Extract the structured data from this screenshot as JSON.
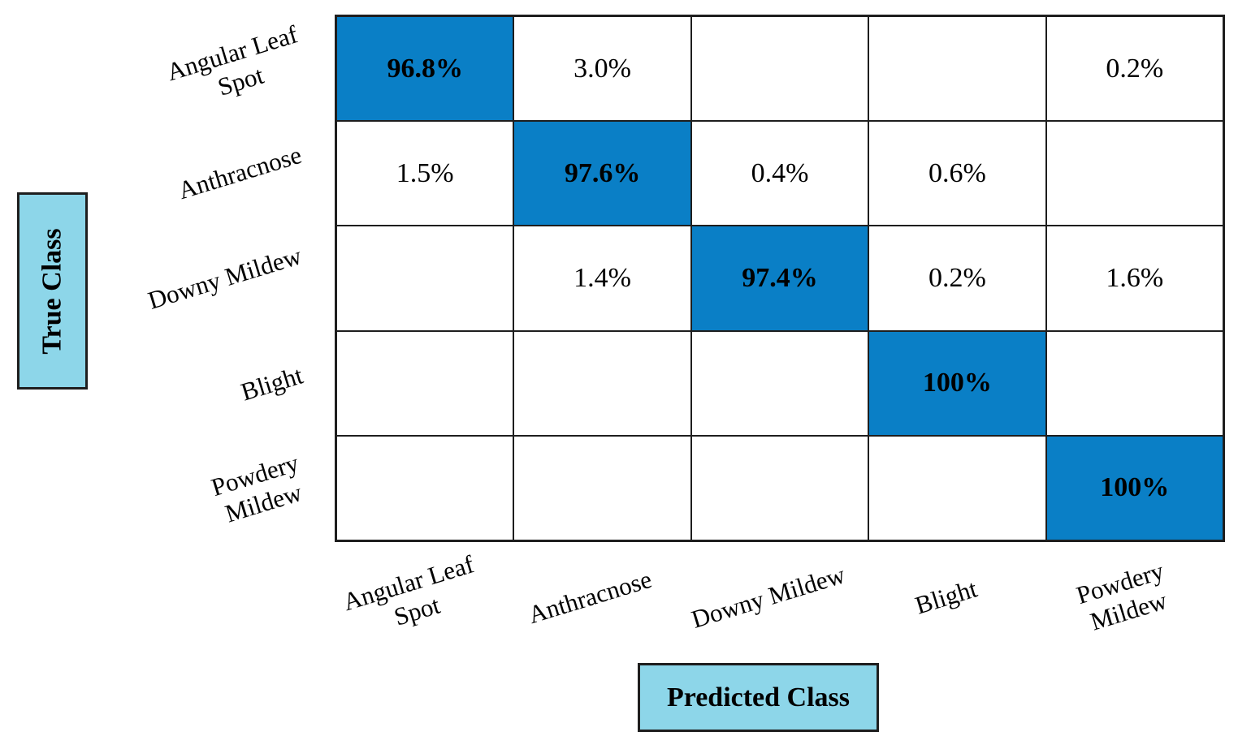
{
  "chart_data": {
    "type": "heatmap",
    "subtype": "confusion-matrix",
    "title": "",
    "xlabel": "Predicted Class",
    "ylabel": "True Class",
    "categories": [
      "Angular Leaf Spot",
      "Anthracnose",
      "Downy Mildew",
      "Blight",
      "Powdery Mildew"
    ],
    "row_labels": [
      "Angular Leaf\nSpot",
      "Anthracnose",
      "Downy Mildew",
      "Blight",
      "Powdery\nMildew"
    ],
    "col_labels": [
      "Angular Leaf\nSpot",
      "Anthracnose",
      "Downy Mildew",
      "Blight",
      "Powdery\nMildew"
    ],
    "matrix": [
      [
        "96.8%",
        "3.0%",
        "",
        "",
        "0.2%"
      ],
      [
        "1.5%",
        "97.6%",
        "0.4%",
        "0.6%",
        ""
      ],
      [
        "",
        "1.4%",
        "97.4%",
        "0.2%",
        "1.6%"
      ],
      [
        "",
        "",
        "",
        "100%",
        ""
      ],
      [
        "",
        "",
        "",
        "",
        "100%"
      ]
    ],
    "values_numeric": [
      [
        96.8,
        3.0,
        null,
        null,
        0.2
      ],
      [
        1.5,
        97.6,
        0.4,
        0.6,
        null
      ],
      [
        null,
        1.4,
        97.4,
        0.2,
        1.6
      ],
      [
        null,
        null,
        null,
        100,
        null
      ],
      [
        null,
        null,
        null,
        null,
        100
      ]
    ],
    "diagonal_highlighted": true,
    "legend": "none",
    "grid": true,
    "colors": {
      "diagonal_fill": "#0a7fc6",
      "cell_fill": "#ffffff",
      "axis_label_fill": "#8dd6e9",
      "border": "#1e1e1e",
      "text": "#000000"
    }
  }
}
